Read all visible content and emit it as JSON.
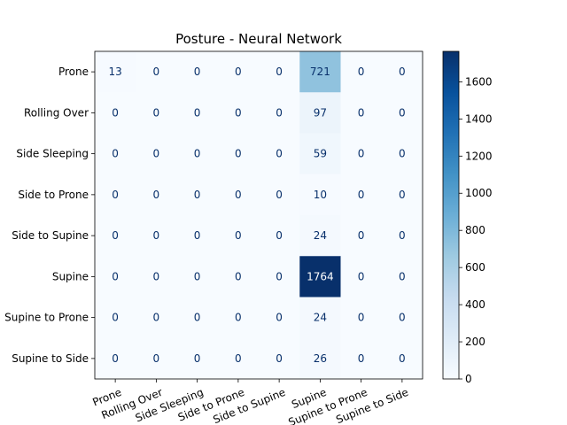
{
  "chart_data": {
    "type": "heatmap",
    "title": "Posture - Neural Network",
    "xlabel": "",
    "ylabel": "",
    "row_labels": [
      "Prone",
      "Rolling Over",
      "Side Sleeping",
      "Side to Prone",
      "Side to Supine",
      "Supine",
      "Supine to Prone",
      "Supine to Side"
    ],
    "col_labels": [
      "Prone",
      "Rolling Over",
      "Side Sleeping",
      "Side to Prone",
      "Side to Supine",
      "Supine",
      "Supine to Prone",
      "Supine to Side"
    ],
    "values": [
      [
        13,
        0,
        0,
        0,
        0,
        721,
        0,
        0
      ],
      [
        0,
        0,
        0,
        0,
        0,
        97,
        0,
        0
      ],
      [
        0,
        0,
        0,
        0,
        0,
        59,
        0,
        0
      ],
      [
        0,
        0,
        0,
        0,
        0,
        10,
        0,
        0
      ],
      [
        0,
        0,
        0,
        0,
        0,
        24,
        0,
        0
      ],
      [
        0,
        0,
        0,
        0,
        0,
        1764,
        0,
        0
      ],
      [
        0,
        0,
        0,
        0,
        0,
        24,
        0,
        0
      ],
      [
        0,
        0,
        0,
        0,
        0,
        26,
        0,
        0
      ]
    ],
    "colormap": "Blues",
    "colorbar": {
      "range": [
        0,
        1764
      ],
      "ticks": [
        0,
        200,
        400,
        600,
        800,
        1000,
        1200,
        1400,
        1600
      ]
    },
    "grid": false
  }
}
